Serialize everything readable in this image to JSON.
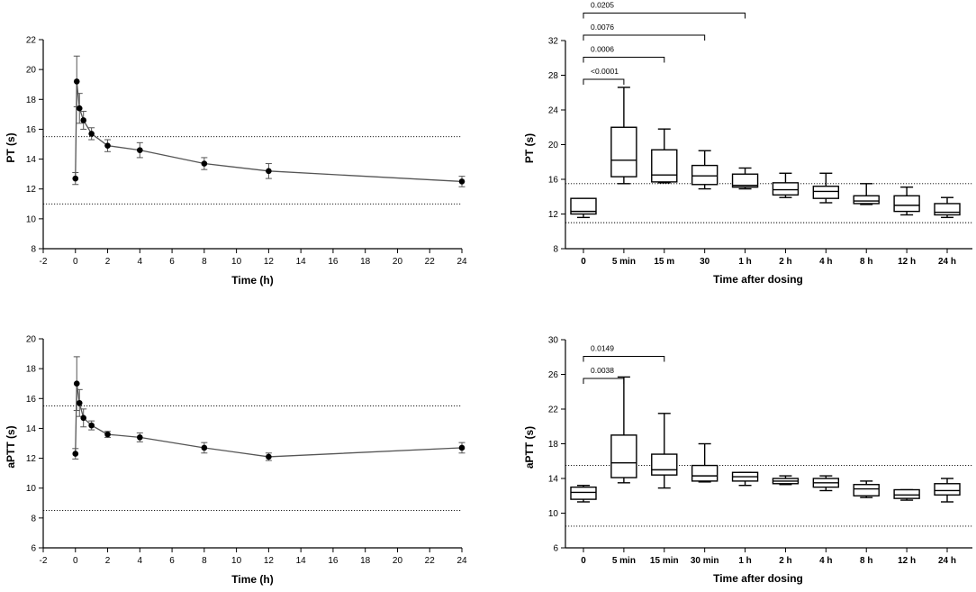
{
  "chart_data": [
    {
      "id": "pt_time",
      "type": "line",
      "xlabel": "Time (h)",
      "ylabel": "PT (s)",
      "xlim": [
        -2,
        24
      ],
      "ylim": [
        8,
        22
      ],
      "xticks": [
        -2,
        0,
        2,
        4,
        6,
        8,
        10,
        12,
        14,
        16,
        18,
        20,
        22,
        24
      ],
      "yticks": [
        8,
        10,
        12,
        14,
        16,
        18,
        20,
        22
      ],
      "xtick_labels": [
        "-2",
        "0",
        "2",
        "4",
        "6",
        "8",
        "10",
        "12",
        "14",
        "16",
        "18",
        "20",
        "22",
        "24"
      ],
      "ytick_labels": [
        "8",
        "10",
        "12",
        "14",
        "16",
        "18",
        "20",
        "22"
      ],
      "reference_lines": [
        15.5,
        11.0
      ],
      "series": [
        {
          "name": "PT",
          "x": [
            0,
            0.083,
            0.25,
            0.5,
            1,
            2,
            4,
            8,
            12,
            24
          ],
          "y": [
            12.7,
            19.2,
            17.4,
            16.6,
            15.7,
            14.9,
            14.6,
            13.7,
            13.2,
            12.5
          ],
          "error": [
            0.4,
            1.7,
            1.0,
            0.6,
            0.4,
            0.4,
            0.5,
            0.4,
            0.5,
            0.35
          ]
        }
      ]
    },
    {
      "id": "pt_box",
      "type": "box",
      "xlabel": "Time after dosing",
      "ylabel": "PT (s)",
      "ylim": [
        8,
        32
      ],
      "yticks": [
        8,
        12,
        16,
        20,
        24,
        28,
        32
      ],
      "ytick_labels": [
        "8",
        "12",
        "16",
        "20",
        "24",
        "28",
        "32"
      ],
      "categories": [
        "0",
        "5 min",
        "15 m",
        "30",
        "1 h",
        "2 h",
        "4 h",
        "8 h",
        "12 h",
        "24 h"
      ],
      "reference_lines": [
        15.5,
        11.0
      ],
      "boxes": [
        {
          "min": 11.6,
          "q1": 12.0,
          "median": 12.3,
          "q3": 13.8,
          "max": 13.8
        },
        {
          "min": 15.5,
          "q1": 16.3,
          "median": 18.2,
          "q3": 22.0,
          "max": 26.6
        },
        {
          "min": 15.6,
          "q1": 15.7,
          "median": 16.5,
          "q3": 19.4,
          "max": 21.8
        },
        {
          "min": 14.9,
          "q1": 15.4,
          "median": 16.4,
          "q3": 17.6,
          "max": 19.3
        },
        {
          "min": 14.9,
          "q1": 15.1,
          "median": 15.3,
          "q3": 16.6,
          "max": 17.3
        },
        {
          "min": 13.9,
          "q1": 14.2,
          "median": 14.8,
          "q3": 15.6,
          "max": 16.7
        },
        {
          "min": 13.3,
          "q1": 13.8,
          "median": 14.6,
          "q3": 15.2,
          "max": 16.7
        },
        {
          "min": 13.1,
          "q1": 13.2,
          "median": 13.5,
          "q3": 14.1,
          "max": 15.5
        },
        {
          "min": 11.9,
          "q1": 12.3,
          "median": 13.0,
          "q3": 14.1,
          "max": 15.1
        },
        {
          "min": 11.6,
          "q1": 11.9,
          "median": 12.2,
          "q3": 13.2,
          "max": 13.9
        }
      ],
      "comparisons": [
        {
          "from": 0,
          "to": 1,
          "label": "<0.0001",
          "level": 1
        },
        {
          "from": 0,
          "to": 2,
          "label": "0.0006",
          "level": 2
        },
        {
          "from": 0,
          "to": 3,
          "label": "0.0076",
          "level": 3
        },
        {
          "from": 0,
          "to": 4,
          "label": "0.0205",
          "level": 4
        }
      ]
    },
    {
      "id": "aptt_time",
      "type": "line",
      "xlabel": "Time (h)",
      "ylabel": "aPTT (s)",
      "xlim": [
        -2,
        24
      ],
      "ylim": [
        6,
        20
      ],
      "xticks": [
        -2,
        0,
        2,
        4,
        6,
        8,
        10,
        12,
        14,
        16,
        18,
        20,
        22,
        24
      ],
      "yticks": [
        6,
        8,
        10,
        12,
        14,
        16,
        18,
        20
      ],
      "xtick_labels": [
        "-2",
        "0",
        "2",
        "4",
        "6",
        "8",
        "10",
        "12",
        "14",
        "16",
        "18",
        "20",
        "22",
        "24"
      ],
      "ytick_labels": [
        "6",
        "8",
        "10",
        "12",
        "14",
        "16",
        "18",
        "20"
      ],
      "reference_lines": [
        15.5,
        8.5
      ],
      "series": [
        {
          "name": "aPTT",
          "x": [
            0,
            0.083,
            0.25,
            0.5,
            1,
            2,
            4,
            8,
            12,
            24
          ],
          "y": [
            12.3,
            17.0,
            15.7,
            14.7,
            14.2,
            13.6,
            13.4,
            12.7,
            12.1,
            12.7
          ],
          "error": [
            0.35,
            1.8,
            0.9,
            0.6,
            0.3,
            0.2,
            0.3,
            0.35,
            0.25,
            0.35
          ]
        }
      ]
    },
    {
      "id": "aptt_box",
      "type": "box",
      "xlabel": "Time after dosing",
      "ylabel": "aPTT (s)",
      "ylim": [
        6,
        30
      ],
      "yticks": [
        6,
        10,
        14,
        18,
        22,
        26,
        30
      ],
      "ytick_labels": [
        "6",
        "10",
        "14",
        "18",
        "22",
        "26",
        "30"
      ],
      "categories": [
        "0",
        "5 min",
        "15 min",
        "30 min",
        "1 h",
        "2 h",
        "4 h",
        "8 h",
        "12 h",
        "24 h"
      ],
      "reference_lines": [
        15.5,
        8.5
      ],
      "boxes": [
        {
          "min": 11.3,
          "q1": 11.6,
          "median": 12.4,
          "q3": 13.0,
          "max": 13.2
        },
        {
          "min": 13.5,
          "q1": 14.1,
          "median": 15.8,
          "q3": 19.0,
          "max": 25.7
        },
        {
          "min": 12.9,
          "q1": 14.4,
          "median": 15.0,
          "q3": 16.8,
          "max": 21.5
        },
        {
          "min": 13.6,
          "q1": 13.7,
          "median": 14.3,
          "q3": 15.5,
          "max": 18.0
        },
        {
          "min": 13.2,
          "q1": 13.7,
          "median": 14.2,
          "q3": 14.7,
          "max": 14.7
        },
        {
          "min": 13.3,
          "q1": 13.4,
          "median": 13.7,
          "q3": 14.0,
          "max": 14.3
        },
        {
          "min": 12.6,
          "q1": 13.0,
          "median": 13.5,
          "q3": 14.0,
          "max": 14.3
        },
        {
          "min": 11.8,
          "q1": 12.0,
          "median": 12.8,
          "q3": 13.3,
          "max": 13.7
        },
        {
          "min": 11.5,
          "q1": 11.7,
          "median": 12.1,
          "q3": 12.7,
          "max": 12.7
        },
        {
          "min": 11.3,
          "q1": 12.1,
          "median": 12.6,
          "q3": 13.4,
          "max": 14.0
        }
      ],
      "comparisons": [
        {
          "from": 0,
          "to": 1,
          "label": "0.0038",
          "level": 1
        },
        {
          "from": 0,
          "to": 2,
          "label": "0.0149",
          "level": 2
        }
      ]
    }
  ]
}
